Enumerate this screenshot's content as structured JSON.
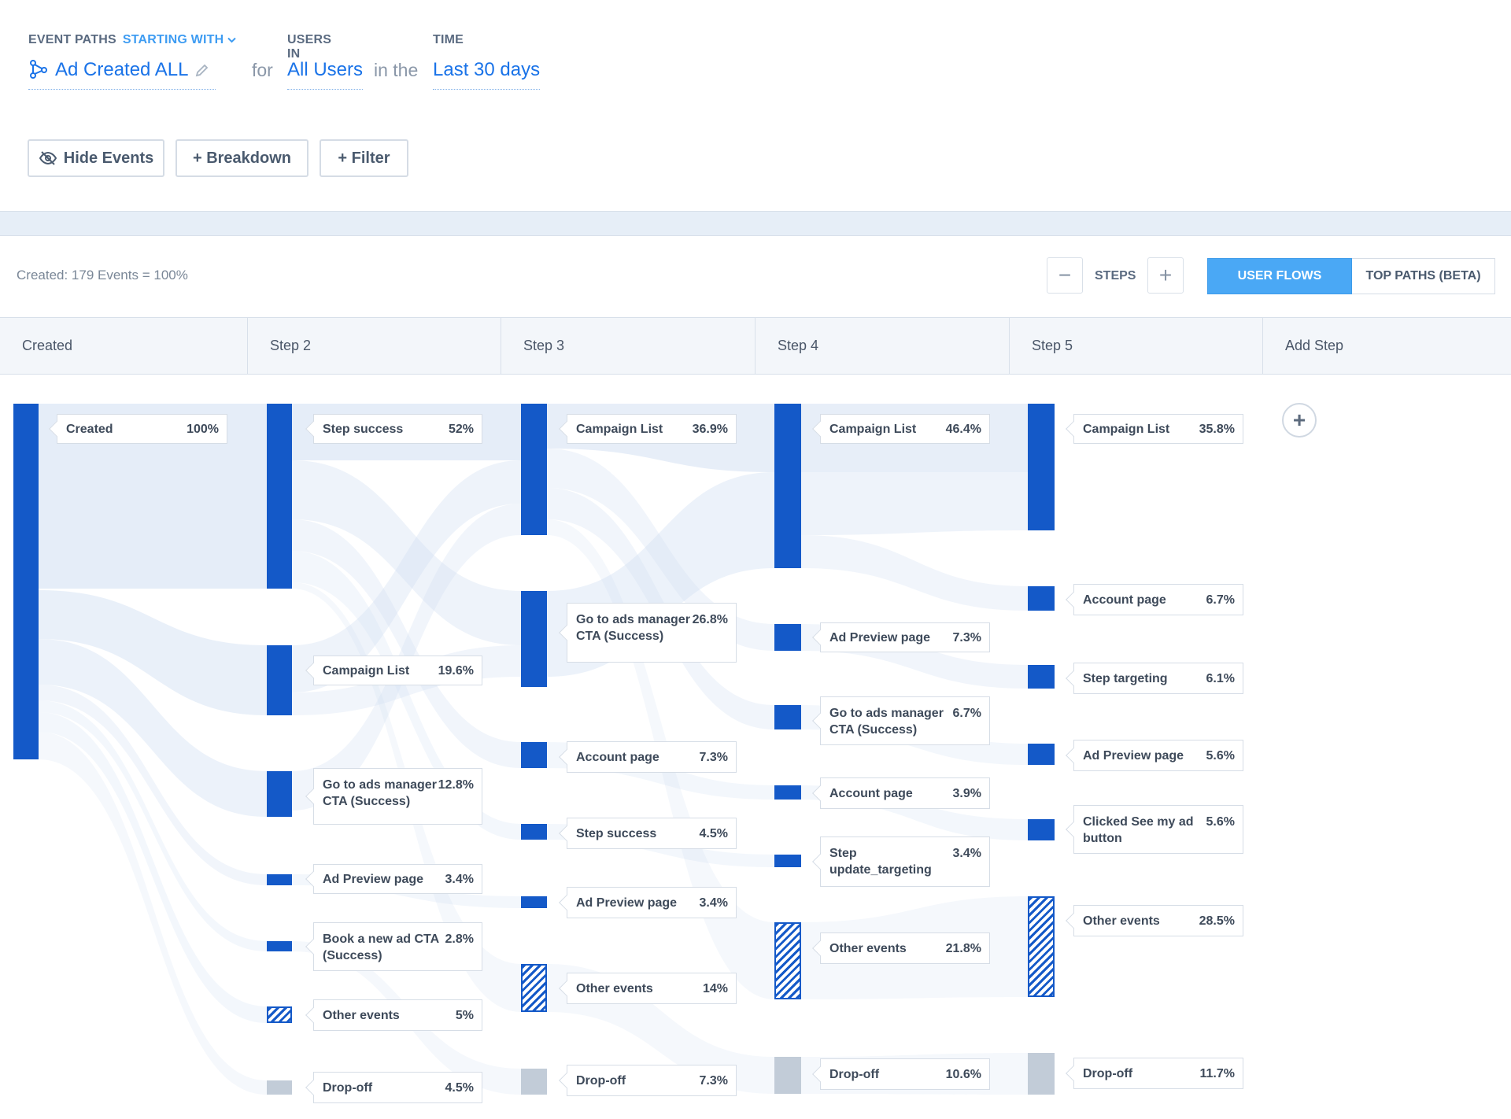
{
  "query": {
    "event_paths_label": "EVENT PATHS",
    "starting_with_label": "STARTING WITH",
    "event_value": "Ad Created ALL",
    "for_word": "for",
    "users_label": "USERS IN",
    "users_value": "All Users",
    "in_the_word": "in the",
    "time_label": "TIME",
    "time_value": "Last 30 days"
  },
  "toolbar": {
    "hide_events": "Hide Events",
    "breakdown": "+ Breakdown",
    "filter": "+ Filter"
  },
  "summary": "Created: 179 Events = 100%",
  "steps_control": {
    "minus": "−",
    "label": "STEPS",
    "plus": "+"
  },
  "view_toggle": {
    "user_flows": "USER FLOWS",
    "top_paths": "TOP PATHS (BETA)",
    "active": "user_flows"
  },
  "columns": [
    "Created",
    "Step 2",
    "Step 3",
    "Step 4",
    "Step 5",
    "Add Step"
  ],
  "add_step_symbol": "+",
  "colors": {
    "node": "#1459c8",
    "flow": "#dde8f6",
    "accent": "#3e9cf2",
    "active_toggle": "#4aa8f5",
    "dropoff": "#c2ccd8"
  },
  "steps": [
    {
      "nodes": [
        {
          "label": "Created",
          "pct": "100%",
          "value": 100,
          "kind": "event"
        }
      ]
    },
    {
      "nodes": [
        {
          "label": "Step success",
          "pct": "52%",
          "value": 52,
          "kind": "event"
        },
        {
          "label": "Campaign List",
          "pct": "19.6%",
          "value": 19.6,
          "kind": "event"
        },
        {
          "label": "Go to ads manager CTA (Success)",
          "pct": "12.8%",
          "value": 12.8,
          "kind": "event"
        },
        {
          "label": "Ad Preview page",
          "pct": "3.4%",
          "value": 3.4,
          "kind": "event"
        },
        {
          "label": "Book a new ad CTA (Success)",
          "pct": "2.8%",
          "value": 2.8,
          "kind": "event"
        },
        {
          "label": "Other events",
          "pct": "5%",
          "value": 5,
          "kind": "other"
        },
        {
          "label": "Drop-off",
          "pct": "4.5%",
          "value": 4.5,
          "kind": "drop"
        }
      ]
    },
    {
      "nodes": [
        {
          "label": "Campaign List",
          "pct": "36.9%",
          "value": 36.9,
          "kind": "event"
        },
        {
          "label": "Go to ads manager CTA (Success)",
          "pct": "26.8%",
          "value": 26.8,
          "kind": "event"
        },
        {
          "label": "Account page",
          "pct": "7.3%",
          "value": 7.3,
          "kind": "event"
        },
        {
          "label": "Step success",
          "pct": "4.5%",
          "value": 4.5,
          "kind": "event"
        },
        {
          "label": "Ad Preview page",
          "pct": "3.4%",
          "value": 3.4,
          "kind": "event"
        },
        {
          "label": "Other events",
          "pct": "14%",
          "value": 14,
          "kind": "other"
        },
        {
          "label": "Drop-off",
          "pct": "7.3%",
          "value": 7.3,
          "kind": "drop"
        }
      ]
    },
    {
      "nodes": [
        {
          "label": "Campaign List",
          "pct": "46.4%",
          "value": 46.4,
          "kind": "event"
        },
        {
          "label": "Ad Preview page",
          "pct": "7.3%",
          "value": 7.3,
          "kind": "event"
        },
        {
          "label": "Go to ads manager CTA (Success)",
          "pct": "6.7%",
          "value": 6.7,
          "kind": "event"
        },
        {
          "label": "Account page",
          "pct": "3.9%",
          "value": 3.9,
          "kind": "event"
        },
        {
          "label": "Step update_targeting",
          "pct": "3.4%",
          "value": 3.4,
          "kind": "event"
        },
        {
          "label": "Other events",
          "pct": "21.8%",
          "value": 21.8,
          "kind": "other"
        },
        {
          "label": "Drop-off",
          "pct": "10.6%",
          "value": 10.6,
          "kind": "drop"
        }
      ]
    },
    {
      "nodes": [
        {
          "label": "Campaign List",
          "pct": "35.8%",
          "value": 35.8,
          "kind": "event"
        },
        {
          "label": "Account page",
          "pct": "6.7%",
          "value": 6.7,
          "kind": "event"
        },
        {
          "label": "Step targeting",
          "pct": "6.1%",
          "value": 6.1,
          "kind": "event"
        },
        {
          "label": "Ad Preview page",
          "pct": "5.6%",
          "value": 5.6,
          "kind": "event"
        },
        {
          "label": "Clicked See my ad button",
          "pct": "5.6%",
          "value": 5.6,
          "kind": "event"
        },
        {
          "label": "Other events",
          "pct": "28.5%",
          "value": 28.5,
          "kind": "other"
        },
        {
          "label": "Drop-off",
          "pct": "11.7%",
          "value": 11.7,
          "kind": "drop"
        }
      ]
    }
  ]
}
